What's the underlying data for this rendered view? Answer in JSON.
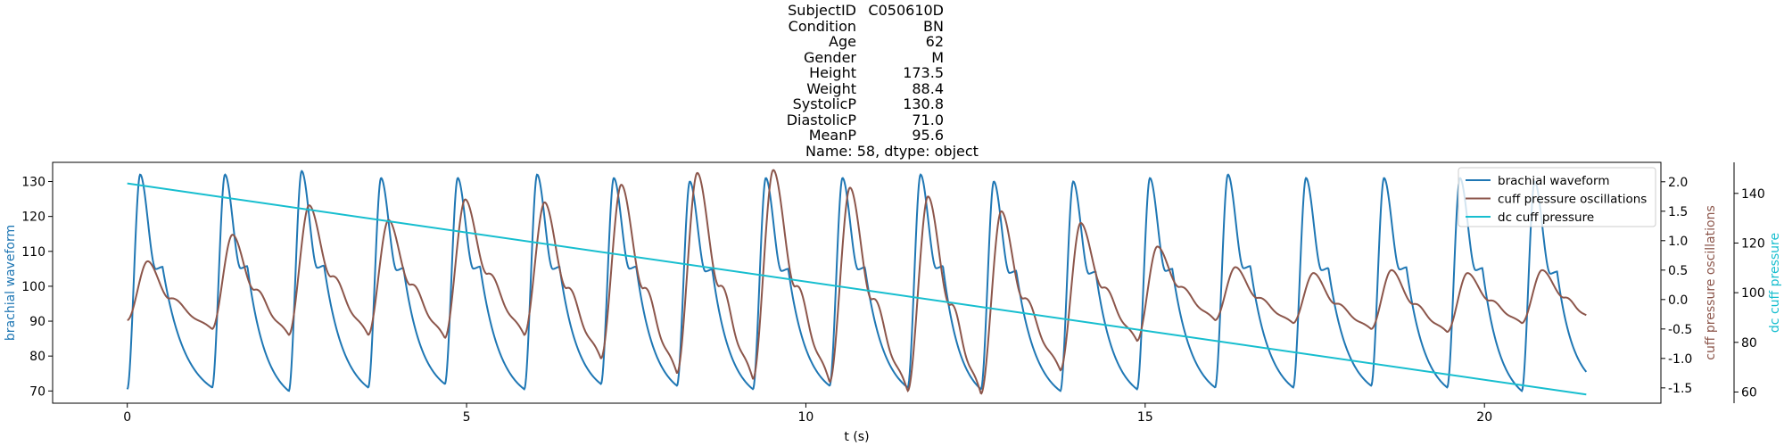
{
  "title_lines": [
    {
      "key": "SubjectID",
      "value": "C050610D"
    },
    {
      "key": "Condition",
      "value": "BN"
    },
    {
      "key": "Age",
      "value": "62"
    },
    {
      "key": "Gender",
      "value": "M"
    },
    {
      "key": "Height",
      "value": "173.5"
    },
    {
      "key": "Weight",
      "value": "88.4"
    },
    {
      "key": "SystolicP",
      "value": "130.8"
    },
    {
      "key": "DiastolicP",
      "value": "71.0"
    },
    {
      "key": "MeanP",
      "value": "95.6"
    }
  ],
  "title_footer": "Name: 58, dtype: object",
  "colors": {
    "brachial": "#1f77b4",
    "cuff_osc": "#8c564b",
    "dc_cuff": "#17becf"
  },
  "chart_data": {
    "type": "line",
    "xlabel": "t (s)",
    "xlim": [
      -1.1,
      22.6
    ],
    "xticks": [
      0,
      5,
      10,
      15,
      20
    ],
    "grid": false,
    "legend_position": "top-right",
    "axes": {
      "left": {
        "label": "brachial waveform",
        "ylim": [
          66.5,
          135.5
        ],
        "ticks": [
          70,
          80,
          90,
          100,
          110,
          120,
          130
        ]
      },
      "right": {
        "label": "cuff pressure oscillations",
        "ylim": [
          -1.76,
          2.33
        ],
        "ticks": [
          -1.5,
          -1.0,
          -0.5,
          0.0,
          0.5,
          1.0,
          1.5,
          2.0
        ]
      },
      "right_outer": {
        "label": "dc cuff pressure",
        "ylim": [
          55.5,
          152.5
        ],
        "ticks": [
          60,
          80,
          100,
          120,
          140
        ]
      }
    },
    "series": [
      {
        "name": "brachial waveform",
        "axis": "left",
        "t_range": [
          0,
          21.5
        ],
        "beat_onsets": [
          0.0,
          1.25,
          2.38,
          3.55,
          4.68,
          5.85,
          6.98,
          8.1,
          9.22,
          10.35,
          11.5,
          12.58,
          13.75,
          14.88,
          16.03,
          17.18,
          18.33,
          19.45,
          20.55
        ],
        "beat_peaks": [
          132,
          132,
          133,
          131,
          131,
          132,
          131,
          130,
          131,
          131,
          132,
          130,
          130,
          131,
          132,
          131,
          131,
          131,
          130
        ],
        "beat_troughs": [
          70.5,
          71,
          70,
          71,
          72,
          70.5,
          72,
          71.5,
          70.5,
          71.5,
          71,
          70.5,
          70,
          70.5,
          71,
          71,
          71.5,
          71,
          70
        ],
        "end_value": 73.5
      },
      {
        "name": "cuff pressure oscillations",
        "axis": "right",
        "t_range": [
          0,
          21.5
        ],
        "beat_onsets": [
          0.0,
          1.25,
          2.38,
          3.55,
          4.68,
          5.85,
          6.98,
          8.1,
          9.22,
          10.35,
          11.5,
          12.58,
          13.75,
          14.88,
          16.03,
          17.18,
          18.33,
          19.45,
          20.55
        ],
        "beat_peaks": [
          0.65,
          1.1,
          1.6,
          1.35,
          1.7,
          1.65,
          1.95,
          2.15,
          2.2,
          1.9,
          1.75,
          1.5,
          1.3,
          0.9,
          0.55,
          0.45,
          0.5,
          0.45,
          0.5
        ],
        "beat_troughs": [
          -0.35,
          -0.5,
          -0.6,
          -0.6,
          -0.65,
          -0.6,
          -1.0,
          -1.25,
          -1.35,
          -1.4,
          -1.55,
          -1.6,
          -1.2,
          -0.7,
          -0.35,
          -0.4,
          -0.5,
          -0.55,
          -0.4
        ],
        "start_value": -0.35,
        "end_value": -0.35
      },
      {
        "name": "dc cuff pressure",
        "axis": "right_outer",
        "x": [
          0,
          21.5
        ],
        "y": [
          144,
          59
        ]
      }
    ]
  }
}
